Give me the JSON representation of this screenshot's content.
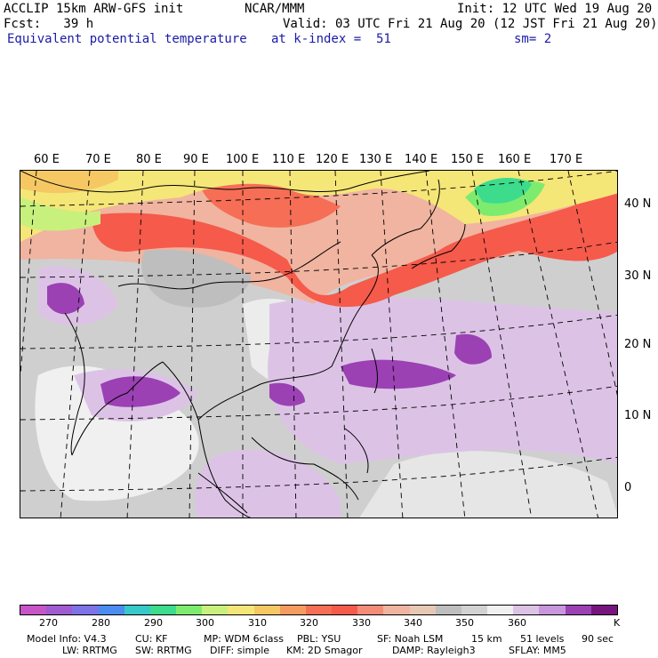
{
  "header": {
    "line1_left": "ACCLIP 15km ARW-GFS init",
    "line1_center": "NCAR/MMM",
    "line1_right": "Init: 12 UTC Wed 19 Aug 20",
    "line2_left": "Fcst:   39 h",
    "line2_right": "Valid: 03 UTC Fri 21 Aug 20 (12 JST Fri 21 Aug 20)",
    "line3_left": "Equivalent potential temperature",
    "line3_center": "at k-index =  51",
    "line3_right": "sm= 2"
  },
  "map": {
    "lon_labels": [
      "60 E",
      "70 E",
      "80 E",
      "90 E",
      "100 E",
      "110 E",
      "120 E",
      "130 E",
      "140 E",
      "150 E",
      "160 E",
      "170 E"
    ],
    "lat_labels": [
      "40 N",
      "30 N",
      "20 N",
      "10 N",
      "0"
    ]
  },
  "colorbar": {
    "unit": "K",
    "labels": [
      "270",
      "280",
      "290",
      "300",
      "310",
      "320",
      "330",
      "340",
      "350",
      "360"
    ],
    "colors": [
      "#c855c8",
      "#a05ad2",
      "#7d73e6",
      "#4b8cf0",
      "#37c8c8",
      "#3cdc8c",
      "#7dec6e",
      "#c8f07d",
      "#f5e678",
      "#f5c864",
      "#f59b5f",
      "#f56e55",
      "#f55a4b",
      "#f58c78",
      "#f0b4a0",
      "#e6c8b4",
      "#bebebe",
      "#d2d2d2",
      "#f0f0f0",
      "#dcc3e6",
      "#c896dc",
      "#9b41b4",
      "#78147d"
    ]
  },
  "footer": {
    "line1": [
      "Model Info: V4.3",
      "CU: KF",
      "MP: WDM 6class",
      "PBL: YSU",
      "SF: Noah LSM",
      "15 km",
      "51 levels",
      "90 sec"
    ],
    "line2": [
      "LW: RRTMG",
      "SW: RRTMG",
      "DIFF: simple",
      "KM: 2D Smagor",
      "DAMP: Rayleigh3",
      "SFLAY: MM5"
    ]
  }
}
